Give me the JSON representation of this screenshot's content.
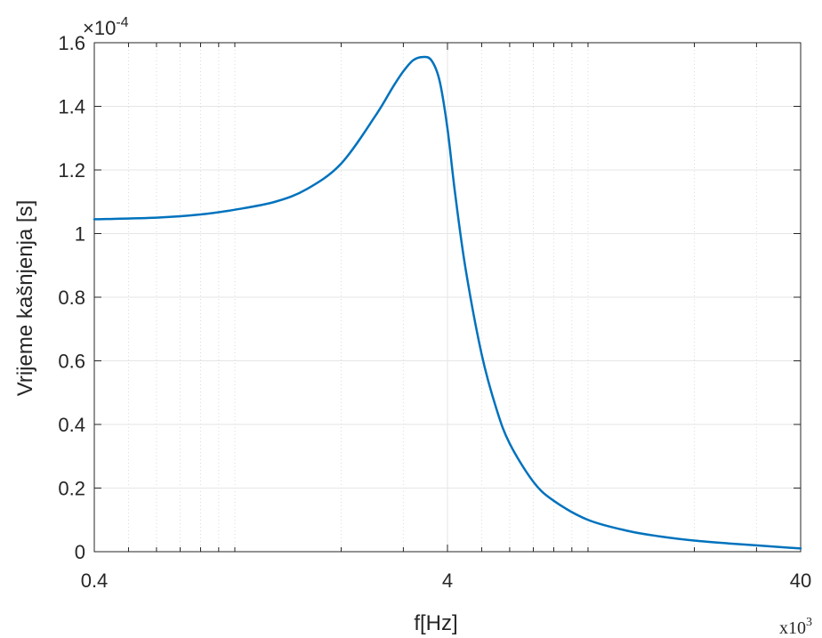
{
  "chart_data": {
    "type": "line",
    "xlabel": "f[Hz]",
    "ylabel": "Vrijeme kašnjenja [s]",
    "x_scale": "log",
    "x_multiplier": "x10",
    "x_multiplier_exp": "3",
    "y_multiplier": "×10",
    "y_multiplier_exp": "-4",
    "xlim": [
      0.4,
      40
    ],
    "ylim": [
      0,
      1.6
    ],
    "xticks": [
      0.4,
      4,
      40
    ],
    "xtick_labels": [
      "0.4",
      "4",
      "40"
    ],
    "yticks": [
      0,
      0.2,
      0.4,
      0.6,
      0.8,
      1,
      1.2,
      1.4,
      1.6
    ],
    "ytick_labels": [
      "0",
      "0.2",
      "0.4",
      "0.6",
      "0.8",
      "1",
      "1.2",
      "1.4",
      "1.6"
    ],
    "grid": true,
    "series_color": "#0072BD",
    "series": [
      {
        "x": [
          0.4,
          0.6,
          0.8,
          1.0,
          1.3,
          1.6,
          2.0,
          2.5,
          2.8,
          3.0,
          3.2,
          3.4,
          3.6,
          3.8,
          4.0,
          4.2,
          4.5,
          5.0,
          5.5,
          6.0,
          7.0,
          8.0,
          10,
          13,
          16,
          20,
          25,
          30,
          40
        ],
        "y": [
          1.045,
          1.05,
          1.06,
          1.075,
          1.1,
          1.14,
          1.22,
          1.37,
          1.46,
          1.51,
          1.545,
          1.555,
          1.545,
          1.48,
          1.33,
          1.13,
          0.89,
          0.62,
          0.45,
          0.34,
          0.22,
          0.16,
          0.1,
          0.065,
          0.048,
          0.035,
          0.026,
          0.02,
          0.01
        ]
      }
    ]
  }
}
